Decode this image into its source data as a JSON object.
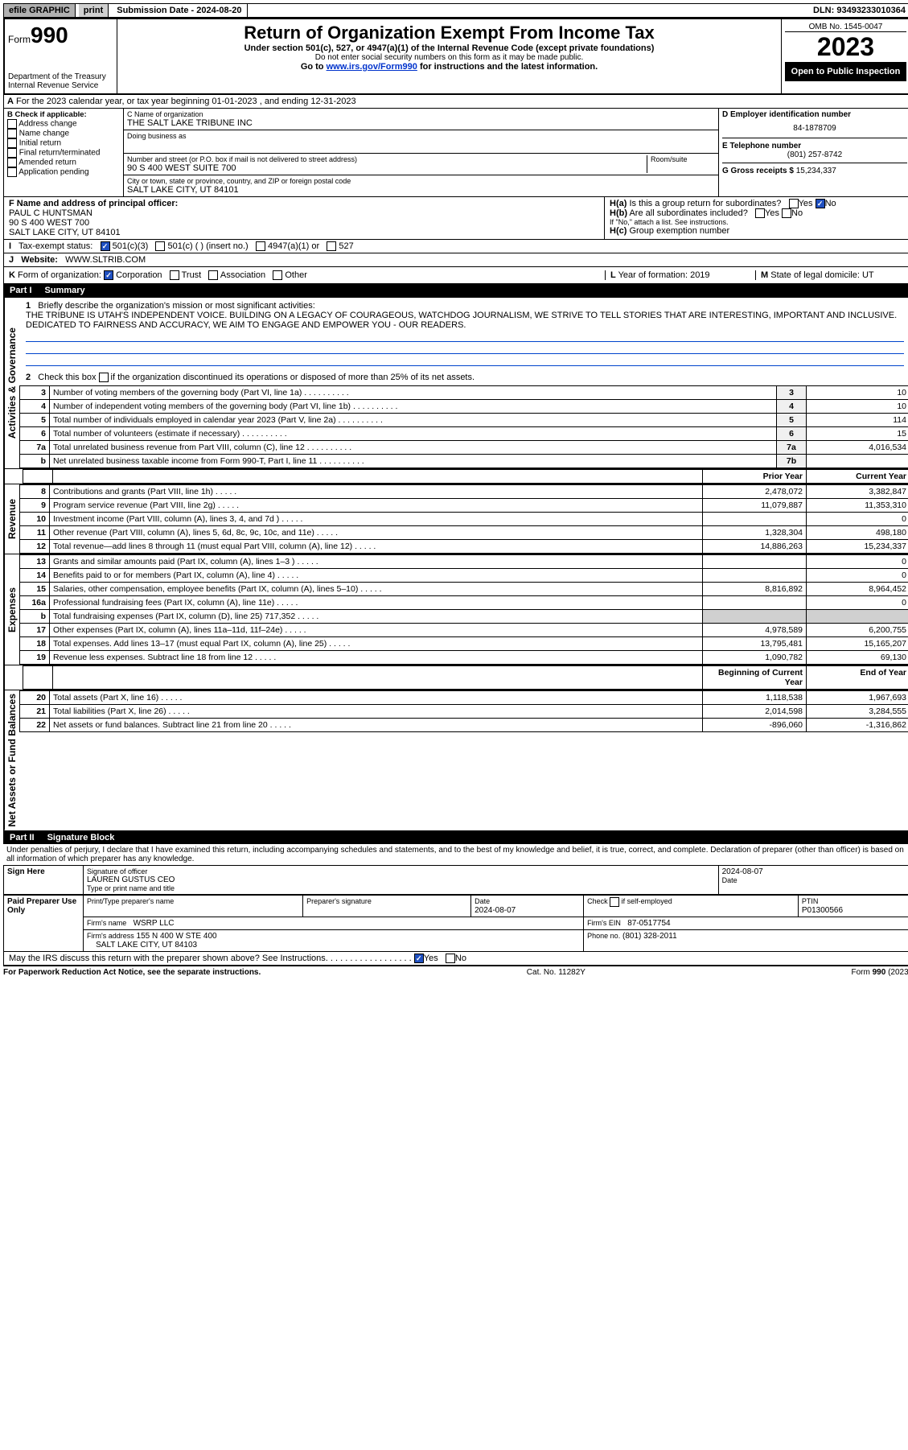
{
  "topbar": {
    "efile": "efile GRAPHIC",
    "print": "print",
    "submission_label": "Submission Date - 2024-08-20",
    "dln": "DLN: 93493233010364"
  },
  "header": {
    "form_prefix": "Form",
    "form_number": "990",
    "title": "Return of Organization Exempt From Income Tax",
    "subtitle": "Under section 501(c), 527, or 4947(a)(1) of the Internal Revenue Code (except private foundations)",
    "ssn_note": "Do not enter social security numbers on this form as it may be made public.",
    "goto_pre": "Go to ",
    "goto_link": "www.irs.gov/Form990",
    "goto_post": " for instructions and the latest information.",
    "dept": "Department of the Treasury",
    "irs": "Internal Revenue Service",
    "omb": "OMB No. 1545-0047",
    "year": "2023",
    "open": "Open to Public Inspection"
  },
  "A": {
    "text": "For the 2023 calendar year, or tax year beginning 01-01-2023    , and ending 12-31-2023"
  },
  "B": {
    "label": "B Check if applicable:",
    "items": [
      "Address change",
      "Name change",
      "Initial return",
      "Final return/terminated",
      "Amended return",
      "Application pending"
    ]
  },
  "C": {
    "name_label": "C Name of organization",
    "name": "THE SALT LAKE TRIBUNE INC",
    "dba_label": "Doing business as",
    "addr_label": "Number and street (or P.O. box if mail is not delivered to street address)",
    "room_label": "Room/suite",
    "addr": "90 S 400 WEST SUITE 700",
    "city_label": "City or town, state or province, country, and ZIP or foreign postal code",
    "city": "SALT LAKE CITY, UT  84101"
  },
  "D": {
    "label": "D Employer identification number",
    "ein": "84-1878709"
  },
  "E": {
    "label": "E Telephone number",
    "phone": "(801) 257-8742"
  },
  "G": {
    "label": "G Gross receipts $",
    "value": "15,234,337"
  },
  "F": {
    "label": "F Name and address of principal officer:",
    "name": "PAUL C HUNTSMAN",
    "addr1": "90 S 400 WEST 700",
    "addr2": "SALT LAKE CITY, UT  84101"
  },
  "H": {
    "a": "Is this a group return for subordinates?",
    "a_ans": "No",
    "b": "Are all subordinates included?",
    "b_note": "If \"No,\" attach a list. See instructions.",
    "c": "Group exemption number"
  },
  "I": {
    "label": "Tax-exempt status:",
    "opt1": "501(c)(3)",
    "opt2": "501(c) (  ) (insert no.)",
    "opt3": "4947(a)(1) or",
    "opt4": "527"
  },
  "J": {
    "label": "Website:",
    "value": "WWW.SLTRIB.COM"
  },
  "K": {
    "label": "Form of organization:",
    "opts": [
      "Corporation",
      "Trust",
      "Association",
      "Other"
    ]
  },
  "L": {
    "label": "Year of formation: 2019"
  },
  "M": {
    "label": "State of legal domicile: UT"
  },
  "part1": {
    "title": "Part I",
    "name": "Summary",
    "line1_label": "Briefly describe the organization's mission or most significant activities:",
    "mission": "THE TRIBUNE IS UTAH'S INDEPENDENT VOICE. BUILDING ON A LEGACY OF COURAGEOUS, WATCHDOG JOURNALISM, WE STRIVE TO TELL STORIES THAT ARE INTERESTING, IMPORTANT AND INCLUSIVE. DEDICATED TO FAIRNESS AND ACCURACY, WE AIM TO ENGAGE AND EMPOWER YOU - OUR READERS.",
    "line2_label": "Check this box          if the organization discontinued its operations or disposed of more than 25% of its net assets.",
    "governance_label": "Activities & Governance",
    "revenue_label": "Revenue",
    "expenses_label": "Expenses",
    "netassets_label": "Net Assets or Fund Balances",
    "rows_gov": [
      {
        "n": "3",
        "t": "Number of voting members of the governing body (Part VI, line 1a)",
        "r": "3",
        "v": "10"
      },
      {
        "n": "4",
        "t": "Number of independent voting members of the governing body (Part VI, line 1b)",
        "r": "4",
        "v": "10"
      },
      {
        "n": "5",
        "t": "Total number of individuals employed in calendar year 2023 (Part V, line 2a)",
        "r": "5",
        "v": "114"
      },
      {
        "n": "6",
        "t": "Total number of volunteers (estimate if necessary)",
        "r": "6",
        "v": "15"
      },
      {
        "n": "7a",
        "t": "Total unrelated business revenue from Part VIII, column (C), line 12",
        "r": "7a",
        "v": "4,016,534"
      },
      {
        "n": "b",
        "t": "Net unrelated business taxable income from Form 990-T, Part I, line 11",
        "r": "7b",
        "v": ""
      }
    ],
    "prior_label": "Prior Year",
    "current_label": "Current Year",
    "rows_rev": [
      {
        "n": "8",
        "t": "Contributions and grants (Part VIII, line 1h)",
        "p": "2,478,072",
        "c": "3,382,847"
      },
      {
        "n": "9",
        "t": "Program service revenue (Part VIII, line 2g)",
        "p": "11,079,887",
        "c": "11,353,310"
      },
      {
        "n": "10",
        "t": "Investment income (Part VIII, column (A), lines 3, 4, and 7d )",
        "p": "",
        "c": "0"
      },
      {
        "n": "11",
        "t": "Other revenue (Part VIII, column (A), lines 5, 6d, 8c, 9c, 10c, and 11e)",
        "p": "1,328,304",
        "c": "498,180"
      },
      {
        "n": "12",
        "t": "Total revenue—add lines 8 through 11 (must equal Part VIII, column (A), line 12)",
        "p": "14,886,263",
        "c": "15,234,337"
      }
    ],
    "rows_exp": [
      {
        "n": "13",
        "t": "Grants and similar amounts paid (Part IX, column (A), lines 1–3 )",
        "p": "",
        "c": "0"
      },
      {
        "n": "14",
        "t": "Benefits paid to or for members (Part IX, column (A), line 4)",
        "p": "",
        "c": "0"
      },
      {
        "n": "15",
        "t": "Salaries, other compensation, employee benefits (Part IX, column (A), lines 5–10)",
        "p": "8,816,892",
        "c": "8,964,452"
      },
      {
        "n": "16a",
        "t": "Professional fundraising fees (Part IX, column (A), line 11e)",
        "p": "",
        "c": "0"
      },
      {
        "n": "b",
        "t": "Total fundraising expenses (Part IX, column (D), line 25) 717,352",
        "p": "GRAY",
        "c": "GRAY"
      },
      {
        "n": "17",
        "t": "Other expenses (Part IX, column (A), lines 11a–11d, 11f–24e)",
        "p": "4,978,589",
        "c": "6,200,755"
      },
      {
        "n": "18",
        "t": "Total expenses. Add lines 13–17 (must equal Part IX, column (A), line 25)",
        "p": "13,795,481",
        "c": "15,165,207"
      },
      {
        "n": "19",
        "t": "Revenue less expenses. Subtract line 18 from line 12",
        "p": "1,090,782",
        "c": "69,130"
      }
    ],
    "begin_label": "Beginning of Current Year",
    "end_label": "End of Year",
    "rows_net": [
      {
        "n": "20",
        "t": "Total assets (Part X, line 16)",
        "p": "1,118,538",
        "c": "1,967,693"
      },
      {
        "n": "21",
        "t": "Total liabilities (Part X, line 26)",
        "p": "2,014,598",
        "c": "3,284,555"
      },
      {
        "n": "22",
        "t": "Net assets or fund balances. Subtract line 21 from line 20",
        "p": "-896,060",
        "c": "-1,316,862"
      }
    ]
  },
  "part2": {
    "title": "Part II",
    "name": "Signature Block",
    "perjury": "Under penalties of perjury, I declare that I have examined this return, including accompanying schedules and statements, and to the best of my knowledge and belief, it is true, correct, and complete. Declaration of preparer (other than officer) is based on all information of which preparer has any knowledge.",
    "sign_here": "Sign Here",
    "sig_officer": "Signature of officer",
    "officer_name": "LAUREN GUSTUS  CEO",
    "officer_label": "Type or print name and title",
    "date": "2024-08-07",
    "date_label": "Date",
    "paid": "Paid Preparer Use Only",
    "prep_name_label": "Print/Type preparer's name",
    "prep_sig_label": "Preparer's signature",
    "prep_date": "2024-08-07",
    "self_emp": "Check          if self-employed",
    "ptin_label": "PTIN",
    "ptin": "P01300566",
    "firm_name_label": "Firm's name",
    "firm_name": "WSRP LLC",
    "firm_ein_label": "Firm's EIN",
    "firm_ein": "87-0517754",
    "firm_addr_label": "Firm's address",
    "firm_addr": "155 N 400 W STE 400",
    "firm_city": "SALT LAKE CITY, UT  84103",
    "firm_phone_label": "Phone no.",
    "firm_phone": "(801) 328-2011",
    "discuss": "May the IRS discuss this return with the preparer shown above? See Instructions.",
    "discuss_yes": "Yes",
    "discuss_no": "No"
  },
  "footer": {
    "pra": "For Paperwork Reduction Act Notice, see the separate instructions.",
    "cat": "Cat. No. 11282Y",
    "form": "Form 990 (2023)"
  }
}
